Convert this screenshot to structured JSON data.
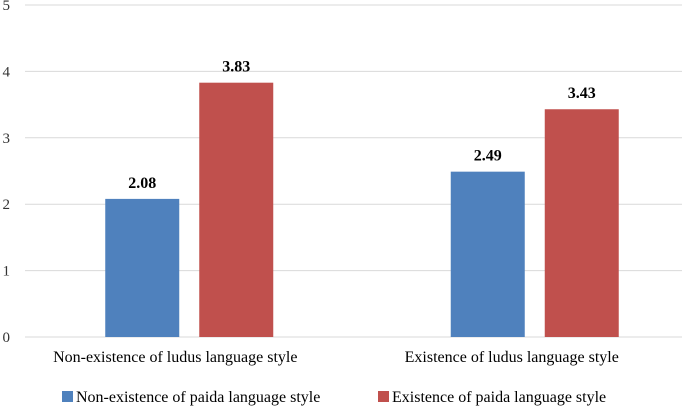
{
  "chart_data": {
    "type": "bar",
    "categories": [
      "Non-existence of ludus language style",
      "Existence of ludus language style"
    ],
    "series": [
      {
        "name": "Non-existence of paida language style",
        "values": [
          2.08,
          2.49
        ],
        "color": "#4f81bd"
      },
      {
        "name": "Existence of paida language style",
        "values": [
          3.83,
          3.43
        ],
        "color": "#c0504d"
      }
    ],
    "ylim": [
      0,
      5
    ],
    "yticks": [
      0,
      1,
      2,
      3,
      4,
      5
    ],
    "grid": true,
    "legend_position": "bottom",
    "data_labels": true
  }
}
